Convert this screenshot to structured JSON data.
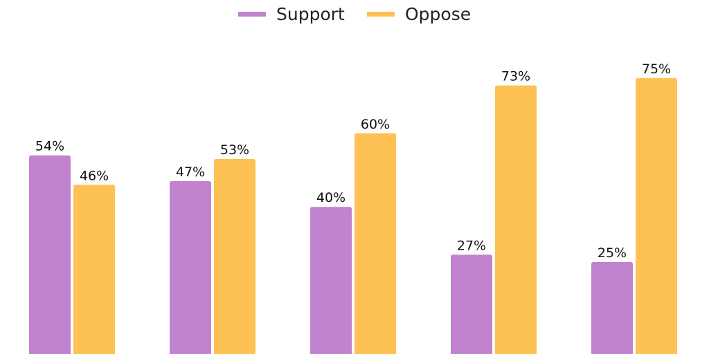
{
  "chart_data": {
    "type": "bar",
    "categories": [
      "",
      "",
      "",
      "",
      ""
    ],
    "series": [
      {
        "name": "Support",
        "values": [
          54,
          47,
          40,
          27,
          25
        ],
        "color": "#C183CE"
      },
      {
        "name": "Oppose",
        "values": [
          46,
          53,
          60,
          73,
          75
        ],
        "color": "#FDC154"
      }
    ],
    "value_suffix": "%",
    "ylim": [
      0,
      100
    ],
    "grid": false,
    "legend_position": "top-center",
    "title": "",
    "xlabel": "",
    "ylabel": ""
  }
}
